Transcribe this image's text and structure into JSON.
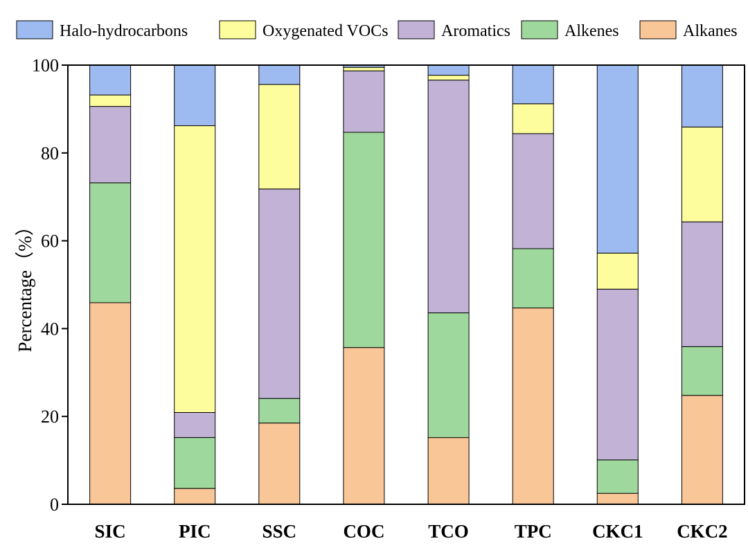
{
  "chart_data": {
    "type": "bar",
    "stacked": true,
    "title": "",
    "xlabel": "",
    "ylabel": "Percentage（%）",
    "ylim": [
      0,
      100
    ],
    "yticks": [
      0,
      20,
      40,
      60,
      80,
      100
    ],
    "grid": false,
    "legend_position": "top",
    "categories": [
      "SIC",
      "PIC",
      "SSC",
      "COC",
      "TCO",
      "TPC",
      "CKC1",
      "CKC2"
    ],
    "series": [
      {
        "name": "Alkanes",
        "color": "#F9C697",
        "values": [
          45.9,
          3.6,
          18.5,
          35.7,
          15.2,
          44.7,
          2.5,
          24.8
        ]
      },
      {
        "name": "Alkenes",
        "color": "#9FD89C",
        "values": [
          27.3,
          11.6,
          5.6,
          49.0,
          28.4,
          13.5,
          7.6,
          11.1
        ]
      },
      {
        "name": "Aromatics",
        "color": "#C1B2D6",
        "values": [
          17.4,
          5.7,
          47.7,
          14.0,
          53.0,
          26.2,
          38.9,
          28.4
        ]
      },
      {
        "name": "Oxygenated VOCs",
        "color": "#FDFD9D",
        "values": [
          2.6,
          65.3,
          23.8,
          0.8,
          1.1,
          6.8,
          8.2,
          21.6
        ]
      },
      {
        "name": "Halo-hydrocarbons",
        "color": "#9DBBF1",
        "values": [
          6.8,
          13.8,
          4.4,
          0.5,
          2.3,
          8.8,
          42.8,
          14.1
        ]
      }
    ],
    "legend_order": [
      "Halo-hydrocarbons",
      "Oxygenated VOCs",
      "Aromatics",
      "Alkenes",
      "Alkanes"
    ]
  }
}
